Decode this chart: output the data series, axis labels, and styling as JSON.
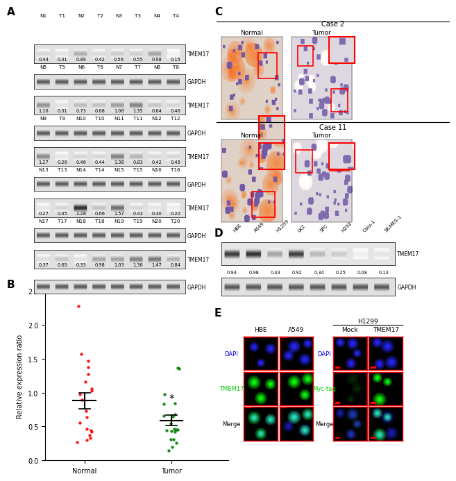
{
  "panel_A": {
    "label": "A",
    "groups": [
      {
        "headers": [
          "N1",
          "T1",
          "N2",
          "T2",
          "N3",
          "T3",
          "N4",
          "T4"
        ],
        "values": [
          0.44,
          0.31,
          0.89,
          0.42,
          0.56,
          0.55,
          0.98,
          0.15
        ]
      },
      {
        "headers": [
          "N5",
          "T5",
          "N6",
          "T6",
          "N7",
          "T7",
          "N8",
          "T8"
        ],
        "values": [
          1.16,
          0.31,
          0.73,
          0.68,
          1.06,
          1.35,
          0.64,
          0.46
        ]
      },
      {
        "headers": [
          "N9",
          "T9",
          "N10",
          "T10",
          "N11",
          "T11",
          "N12",
          "T12"
        ],
        "values": [
          1.27,
          0.26,
          0.46,
          0.44,
          1.38,
          0.83,
          0.42,
          0.45
        ]
      },
      {
        "headers": [
          "N13",
          "T13",
          "N14",
          "T14",
          "N15",
          "T15",
          "N16",
          "T16"
        ],
        "values": [
          0.27,
          0.45,
          2.28,
          0.66,
          1.57,
          0.43,
          0.3,
          0.2
        ]
      },
      {
        "headers": [
          "N17",
          "T17",
          "N18",
          "T18",
          "N19",
          "T19",
          "N20",
          "T20"
        ],
        "values": [
          0.37,
          0.65,
          0.33,
          0.98,
          1.03,
          1.36,
          1.47,
          0.84
        ]
      }
    ]
  },
  "panel_B": {
    "label": "B",
    "ylabel": "Relative expression ratio",
    "normal_values": [
      0.44,
      0.89,
      0.56,
      0.98,
      1.16,
      0.73,
      1.06,
      0.64,
      1.27,
      0.46,
      1.38,
      0.42,
      0.27,
      2.28,
      1.57,
      0.3,
      0.37,
      0.33,
      1.03,
      1.47
    ],
    "tumor_values": [
      0.31,
      0.42,
      0.55,
      0.15,
      0.31,
      0.68,
      1.35,
      0.46,
      0.26,
      0.44,
      0.83,
      0.45,
      0.45,
      0.66,
      0.43,
      0.2,
      0.65,
      0.98,
      1.36,
      0.84
    ],
    "normal_color": "#FF0000",
    "tumor_color": "#008000",
    "ylim": [
      0.0,
      2.5
    ],
    "yticks": [
      0.0,
      0.5,
      1.0,
      1.5,
      2.0,
      2.5
    ],
    "xlabel_normal": "Normal",
    "xlabel_tumor": "Tumor"
  },
  "panel_D": {
    "label": "D",
    "cell_lines": [
      "HBE",
      "A549",
      "H1299",
      "LK2",
      "SPC",
      "H292",
      "Calu-1",
      "SK-MES-1"
    ],
    "values": [
      0.94,
      0.98,
      0.43,
      0.92,
      0.34,
      0.25,
      0.08,
      0.13
    ],
    "str_values": [
      "0.94",
      "0.98",
      "0.43",
      "0.92",
      "0.34",
      "0.25",
      "0.08",
      "0.13"
    ]
  },
  "bg_color": "#FFFFFF"
}
